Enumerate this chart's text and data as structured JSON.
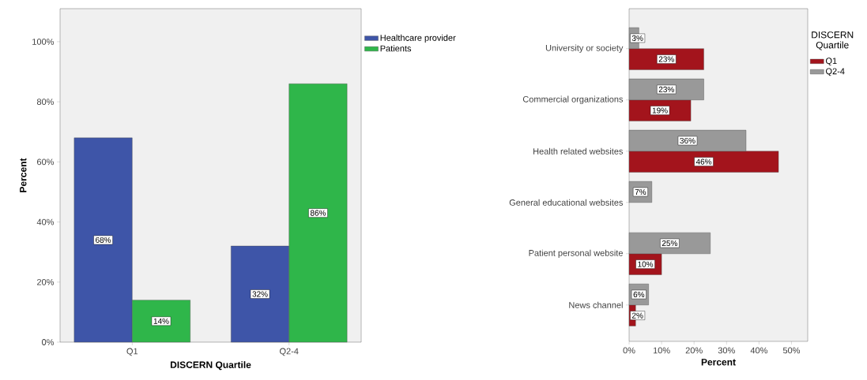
{
  "chart_data": [
    {
      "type": "bar",
      "xlabel": "DISCERN Quartile",
      "ylabel": "Percent",
      "categories": [
        "Q1",
        "Q2-4"
      ],
      "series": [
        {
          "name": "Healthcare provider",
          "color": "#3e55a8",
          "values": [
            68,
            32
          ],
          "value_labels": [
            "68%",
            "32%"
          ]
        },
        {
          "name": "Patients",
          "color": "#2fb64a",
          "values": [
            14,
            86
          ],
          "value_labels": [
            "14%",
            "86%"
          ]
        }
      ],
      "ylim": [
        0,
        111
      ],
      "yticks": [
        {
          "value": 0,
          "label": "0%"
        },
        {
          "value": 20,
          "label": "20%"
        },
        {
          "value": 40,
          "label": "40%"
        },
        {
          "value": 60,
          "label": "60%"
        },
        {
          "value": 80,
          "label": "80%"
        },
        {
          "value": 100,
          "label": "100%"
        }
      ],
      "legend": "top right"
    },
    {
      "type": "bar",
      "orientation": "horizontal",
      "xlabel": "Percent",
      "legend_title": "DISCERN Quartile",
      "categories": [
        "University or society",
        "Commercial organizations",
        "Health related websites",
        "General educational websites",
        "Patient personal website",
        "News channel"
      ],
      "series": [
        {
          "name": "Q1",
          "color": "#a3141c",
          "values": [
            23,
            19,
            46,
            null,
            10,
            2
          ],
          "value_labels": [
            "23%",
            "19%",
            "46%",
            null,
            "10%",
            "2%"
          ]
        },
        {
          "name": "Q2-4",
          "color": "#999999",
          "values": [
            3,
            23,
            36,
            7,
            25,
            6
          ],
          "value_labels": [
            "3%",
            "23%",
            "36%",
            "7%",
            "25%",
            "6%"
          ]
        }
      ],
      "xlim": [
        0,
        55
      ],
      "xticks": [
        {
          "value": 0,
          "label": "0%"
        },
        {
          "value": 10,
          "label": "10%"
        },
        {
          "value": 20,
          "label": "20%"
        },
        {
          "value": 30,
          "label": "30%"
        },
        {
          "value": 40,
          "label": "40%"
        },
        {
          "value": 50,
          "label": "50%"
        }
      ],
      "legend": "top right"
    }
  ]
}
